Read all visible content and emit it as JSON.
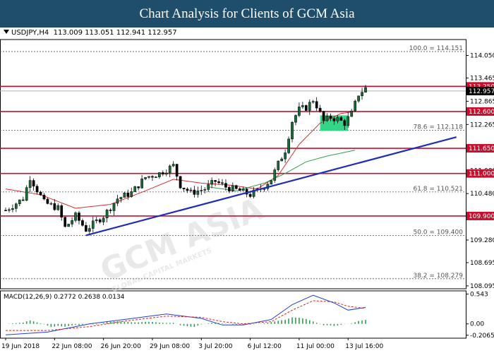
{
  "banner": {
    "title": "Chart Analysis for Clients of GCM Asia"
  },
  "info": {
    "symbol": "USDJPY,H4",
    "ohlc": "113.009 113.051 112.941 112.957"
  },
  "macd_info": "MACD(12,26,9) 0.2772 0.2638 0.0134",
  "watermark": {
    "text": "GCM ASIA",
    "subtext": "GLOBAL CAPITAL MARKETS"
  },
  "colors": {
    "level": "#c8102e",
    "trend": "#1f2db8",
    "bull": "#1a6b3a",
    "ma_red": "#d32f2f",
    "ma_green": "#2e9e4f",
    "zone": "#1ed07a",
    "macd_main": "#1f3fd8",
    "macd_signal": "#e02020"
  },
  "chart_data": {
    "type": "candlestick",
    "ylim": [
      108.02,
      114.46
    ],
    "y_ticks": [
      "114.050",
      "113.465",
      "112.865",
      "112.265",
      "111.680",
      "111.080",
      "110.480",
      "109.880",
      "109.280",
      "108.695",
      "108.095"
    ],
    "x_labels": [
      "19 Jun 2018",
      "22 Jun 08:00",
      "26 Jun 20:00",
      "29 Jun 08:00",
      "3 Jul 20:00",
      "6 Jul 12:00",
      "11 Jul 00:00",
      "13 Jul 16:00"
    ],
    "current_price": "112.957",
    "price_line": 113.13,
    "levels": [
      {
        "value": 113.25,
        "label": "113.250"
      },
      {
        "value": 112.6,
        "label": "112.600"
      },
      {
        "value": 111.65,
        "label": "111.650"
      },
      {
        "value": 111.0,
        "label": "111.000"
      },
      {
        "value": 109.9,
        "label": "109.900"
      }
    ],
    "fib_levels": [
      {
        "value": 114.151,
        "label": "100.0 = 114.151"
      },
      {
        "value": 112.118,
        "label": "78.6 = 112.118"
      },
      {
        "value": 110.521,
        "label": "61.8 = 110.521"
      },
      {
        "value": 109.4,
        "label": "50.0 = 109.400"
      },
      {
        "value": 108.279,
        "label": "38.2 = 108.279"
      }
    ],
    "trendline": [
      {
        "x": 23,
        "y": 109.4
      },
      {
        "x": 129,
        "y": 111.94
      }
    ],
    "zone": {
      "x1": 90,
      "x2": 98,
      "y1": 112.1,
      "y2": 112.5
    },
    "close_path": [
      [
        0,
        110.05
      ],
      [
        5,
        110.35
      ],
      [
        7,
        110.9
      ],
      [
        11,
        110.25
      ],
      [
        15,
        110.1
      ],
      [
        17,
        109.6
      ],
      [
        20,
        109.9
      ],
      [
        23,
        109.55
      ],
      [
        28,
        109.9
      ],
      [
        32,
        110.35
      ],
      [
        36,
        110.5
      ],
      [
        40,
        110.9
      ],
      [
        44,
        111.0
      ],
      [
        48,
        111.2
      ],
      [
        50,
        110.7
      ],
      [
        53,
        110.5
      ],
      [
        57,
        110.6
      ],
      [
        60,
        110.8
      ],
      [
        63,
        110.65
      ],
      [
        67,
        110.55
      ],
      [
        70,
        110.45
      ],
      [
        73,
        110.6
      ],
      [
        76,
        110.85
      ],
      [
        78,
        111.25
      ],
      [
        80,
        111.6
      ],
      [
        82,
        112.35
      ],
      [
        84,
        112.65
      ],
      [
        86,
        112.7
      ],
      [
        88,
        112.9
      ],
      [
        89,
        112.75
      ],
      [
        91,
        112.35
      ],
      [
        93,
        112.45
      ],
      [
        95,
        112.4
      ],
      [
        97,
        112.3
      ],
      [
        99,
        112.55
      ],
      [
        101,
        113.05
      ],
      [
        103,
        113.2
      ]
    ],
    "ma_red_path": [
      [
        0,
        110.6
      ],
      [
        10,
        110.45
      ],
      [
        20,
        110.1
      ],
      [
        30,
        110.2
      ],
      [
        40,
        110.55
      ],
      [
        48,
        110.85
      ],
      [
        56,
        110.75
      ],
      [
        64,
        110.7
      ],
      [
        72,
        110.6
      ],
      [
        78,
        110.95
      ],
      [
        84,
        111.75
      ],
      [
        90,
        112.3
      ],
      [
        96,
        112.55
      ],
      [
        100,
        112.6
      ]
    ],
    "ma_green_path": [
      [
        58,
        110.65
      ],
      [
        66,
        110.55
      ],
      [
        74,
        110.75
      ],
      [
        80,
        111.0
      ],
      [
        86,
        111.3
      ],
      [
        92,
        111.45
      ],
      [
        100,
        111.6
      ]
    ],
    "macd": {
      "ylim": [
        -0.26,
        0.6
      ],
      "y_ticks": [
        "0.543",
        "0.00",
        "-0.2065"
      ],
      "main_path": [
        [
          0,
          -0.2
        ],
        [
          12,
          -0.15
        ],
        [
          24,
          0.0
        ],
        [
          34,
          0.08
        ],
        [
          46,
          0.18
        ],
        [
          56,
          0.1
        ],
        [
          62,
          -0.02
        ],
        [
          68,
          -0.02
        ],
        [
          76,
          0.08
        ],
        [
          82,
          0.35
        ],
        [
          88,
          0.52
        ],
        [
          94,
          0.38
        ],
        [
          98,
          0.25
        ],
        [
          103,
          0.3
        ]
      ],
      "signal_path": [
        [
          0,
          -0.12
        ],
        [
          12,
          -0.12
        ],
        [
          24,
          -0.05
        ],
        [
          34,
          0.05
        ],
        [
          46,
          0.14
        ],
        [
          56,
          0.12
        ],
        [
          62,
          0.04
        ],
        [
          68,
          -0.0
        ],
        [
          76,
          0.04
        ],
        [
          82,
          0.25
        ],
        [
          88,
          0.42
        ],
        [
          94,
          0.4
        ],
        [
          98,
          0.32
        ],
        [
          103,
          0.28
        ]
      ]
    }
  }
}
